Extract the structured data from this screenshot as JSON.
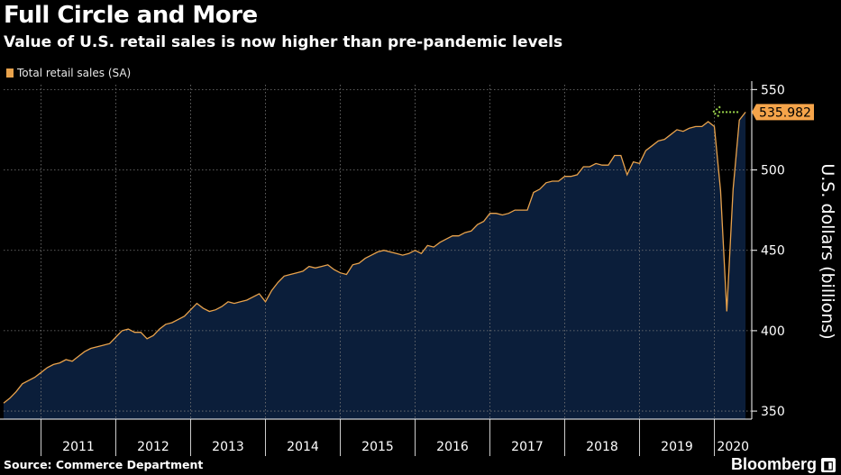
{
  "header": {
    "title": "Full Circle and More",
    "subtitle": "Value of U.S. retail sales is now higher than pre-pandemic levels"
  },
  "footer": {
    "source": "Source: Commerce Department",
    "brand": "Bloomberg",
    "brand_icon": "chart-icon"
  },
  "colors": {
    "background": "#000000",
    "area_fill": "#0b1e3a",
    "line": "#e8a24c",
    "last_value_label": "#f5a44a",
    "arrow": "#9bd64a",
    "grid": "#7a7a7a"
  },
  "chart_data": {
    "type": "area",
    "title": "Full Circle and More",
    "subtitle": "Value of U.S. retail sales is now higher than pre-pandemic levels",
    "ylabel": "U.S. dollars (billions)",
    "xlabel": "",
    "ylim": [
      345,
      553
    ],
    "yticks": [
      350,
      400,
      450,
      500,
      550
    ],
    "xticks": [
      "2011",
      "2012",
      "2013",
      "2014",
      "2015",
      "2016",
      "2017",
      "2018",
      "2019",
      "2020"
    ],
    "x_start": "2010-07",
    "x_end": "2020-07",
    "grid": true,
    "legend_position": "top-left",
    "last_value_label": "535.982",
    "series": [
      {
        "name": "Total retail sales (SA)",
        "frequency": "monthly",
        "start": "2010-07",
        "values": [
          355,
          358,
          362,
          367,
          369,
          371,
          374,
          377,
          379,
          380,
          382,
          381,
          384,
          387,
          389,
          390,
          391,
          392,
          396,
          400,
          401,
          399,
          399,
          395,
          397,
          401,
          404,
          405,
          407,
          409,
          413,
          417,
          414,
          412,
          413,
          415,
          418,
          417,
          418,
          419,
          421,
          423,
          418,
          425,
          430,
          434,
          435,
          436,
          437,
          440,
          439,
          440,
          441,
          438,
          436,
          435,
          441,
          442,
          445,
          447,
          449,
          450,
          449,
          448,
          447,
          448,
          450,
          448,
          453,
          452,
          455,
          457,
          459,
          459,
          461,
          462,
          466,
          468,
          473,
          473,
          472,
          473,
          475,
          475,
          475,
          486,
          488,
          492,
          493,
          493,
          496,
          496,
          497,
          502,
          502,
          504,
          503,
          503,
          509,
          509,
          497,
          505,
          504,
          512,
          515,
          518,
          519,
          522,
          525,
          524,
          526,
          527,
          527,
          530,
          527,
          487,
          412,
          488,
          531,
          535.982
        ]
      }
    ]
  }
}
